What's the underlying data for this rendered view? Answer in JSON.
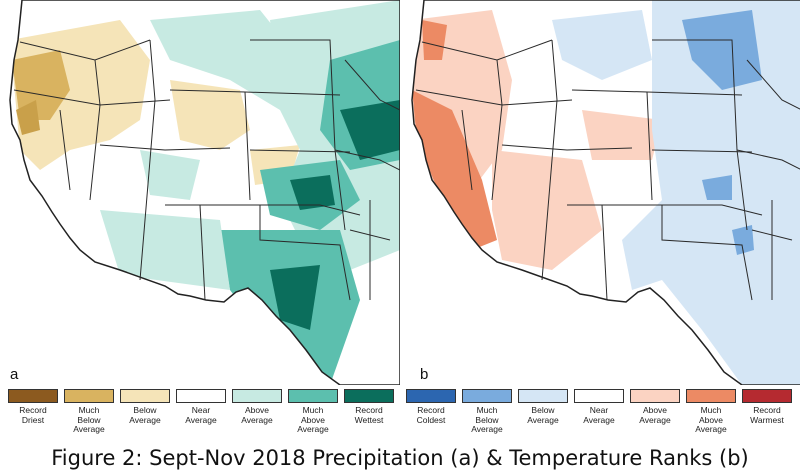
{
  "panels": [
    {
      "id": "a",
      "label": "a"
    },
    {
      "id": "b",
      "label": "b"
    }
  ],
  "legend_precip": [
    {
      "label": "Record\nDriest",
      "color": "#8c5a1f"
    },
    {
      "label": "Much\nBelow\nAverage",
      "color": "#d9b360"
    },
    {
      "label": "Below\nAverage",
      "color": "#f5e4b8"
    },
    {
      "label": "Near\nAverage",
      "color": "#ffffff"
    },
    {
      "label": "Above\nAverage",
      "color": "#c7eae2"
    },
    {
      "label": "Much\nAbove\nAverage",
      "color": "#5cbfae"
    },
    {
      "label": "Record\nWettest",
      "color": "#0b6e5c"
    }
  ],
  "legend_temp": [
    {
      "label": "Record\nColdest",
      "color": "#2c66b0"
    },
    {
      "label": "Much\nBelow\nAverage",
      "color": "#7aabdd"
    },
    {
      "label": "Below\nAverage",
      "color": "#d5e6f5"
    },
    {
      "label": "Near\nAverage",
      "color": "#ffffff"
    },
    {
      "label": "Above\nAverage",
      "color": "#fbd3c2"
    },
    {
      "label": "Much\nAbove\nAverage",
      "color": "#ec8a64"
    },
    {
      "label": "Record\nWarmest",
      "color": "#b52a30"
    }
  ],
  "caption": "Figure 2: Sept-Nov 2018 Precipitation (a) & Temperature Ranks (b)"
}
